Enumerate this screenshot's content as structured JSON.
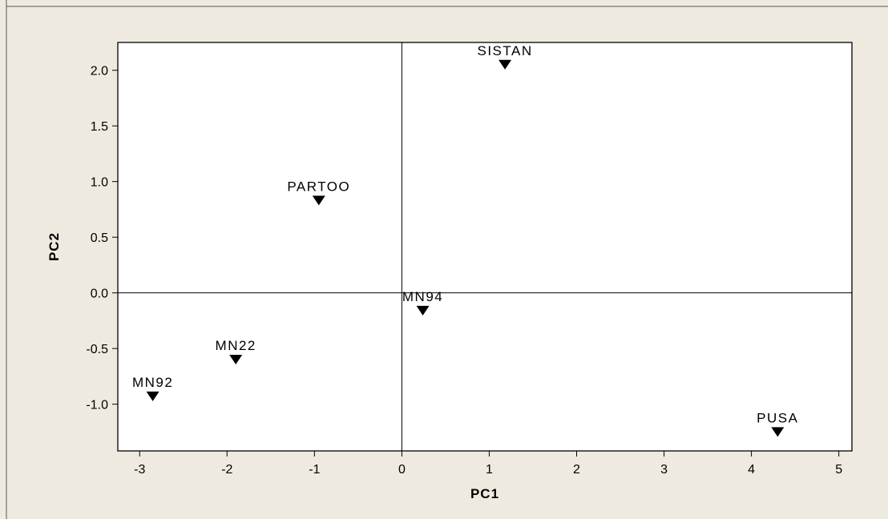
{
  "chart_data": {
    "type": "scatter",
    "title": "",
    "xlabel": "PC1",
    "ylabel": "PC2",
    "xlim": [
      -3.25,
      5.15
    ],
    "ylim": [
      -1.42,
      2.25
    ],
    "xticks": [
      -3,
      -2,
      -1,
      0,
      1,
      2,
      3,
      4,
      5
    ],
    "yticks": [
      -1.0,
      -0.5,
      0.0,
      0.5,
      1.0,
      1.5,
      2.0
    ],
    "reference_lines": {
      "x": 0,
      "y": 0
    },
    "grid": false,
    "marker": "triangle-down",
    "points": [
      {
        "label": "SISTAN",
        "x": 1.18,
        "y": 2.05
      },
      {
        "label": "PARTOO",
        "x": -0.95,
        "y": 0.83
      },
      {
        "label": "MN94",
        "x": 0.24,
        "y": -0.16
      },
      {
        "label": "MN22",
        "x": -1.9,
        "y": -0.6
      },
      {
        "label": "MN92",
        "x": -2.85,
        "y": -0.93
      },
      {
        "label": "PUSA",
        "x": 4.3,
        "y": -1.25
      }
    ]
  },
  "colors": {
    "background": "#efeadf",
    "plot_area": "#ffffff",
    "ink": "#000000",
    "frame": "#555555"
  }
}
